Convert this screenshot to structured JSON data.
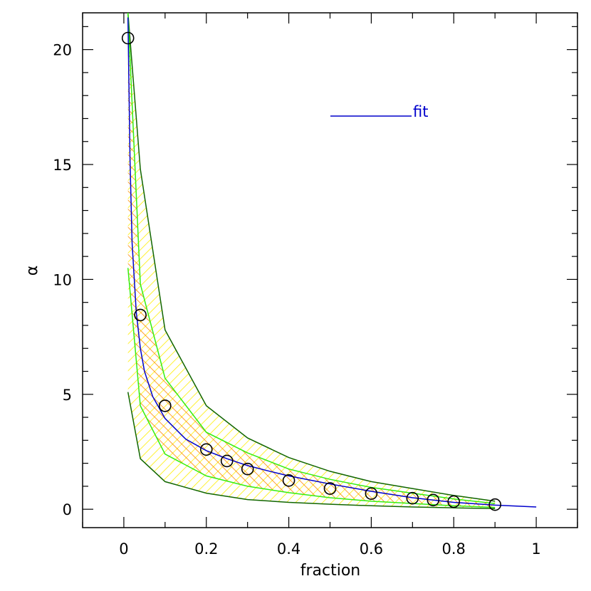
{
  "chart_data": {
    "type": "line",
    "xlabel": "fraction",
    "ylabel": "α",
    "xlim": [
      -0.1,
      1.1
    ],
    "ylim": [
      -0.8,
      21.6
    ],
    "x_ticks": [
      0,
      0.2,
      0.4,
      0.6,
      0.8,
      1
    ],
    "x_tick_labels": [
      "0",
      "0.2",
      "0.4",
      "0.6",
      "0.8",
      "1"
    ],
    "y_ticks": [
      0,
      5,
      10,
      15,
      20
    ],
    "y_tick_labels": [
      "0",
      "5",
      "10",
      "15",
      "20"
    ],
    "grid": false,
    "legend_position": "top-right",
    "colors": {
      "fit": "#0000cc",
      "inner_band": "#ff8800",
      "outer_band": "#ffee00",
      "inner_edge": "#33ee11",
      "outer_edge": "#116600",
      "markers": "#000000"
    },
    "series": [
      {
        "name": "fit",
        "kind": "line",
        "x": [
          0.01,
          0.015,
          0.02,
          0.03,
          0.04,
          0.05,
          0.07,
          0.1,
          0.15,
          0.2,
          0.25,
          0.3,
          0.35,
          0.4,
          0.5,
          0.6,
          0.7,
          0.8,
          0.9,
          1.0
        ],
        "y": [
          21.4,
          15.2,
          11.6,
          8.6,
          7.0,
          6.0,
          4.9,
          3.95,
          3.05,
          2.55,
          2.2,
          1.9,
          1.67,
          1.45,
          1.1,
          0.78,
          0.5,
          0.3,
          0.18,
          0.1
        ]
      },
      {
        "kind": "scatter",
        "x": [
          0.01,
          0.04,
          0.1,
          0.2,
          0.25,
          0.3,
          0.4,
          0.5,
          0.6,
          0.7,
          0.75,
          0.8,
          0.9
        ],
        "y": [
          20.5,
          8.45,
          4.5,
          2.6,
          2.1,
          1.75,
          1.25,
          0.9,
          0.68,
          0.48,
          0.4,
          0.33,
          0.2
        ]
      }
    ],
    "bands": {
      "x": [
        0.01,
        0.04,
        0.1,
        0.2,
        0.3,
        0.4,
        0.5,
        0.6,
        0.7,
        0.8,
        0.9
      ],
      "outer_upper": [
        21.6,
        14.8,
        7.8,
        4.5,
        3.1,
        2.25,
        1.65,
        1.2,
        0.9,
        0.6,
        0.35
      ],
      "inner_upper": [
        21.6,
        9.8,
        5.7,
        3.35,
        2.45,
        1.75,
        1.3,
        0.95,
        0.7,
        0.45,
        0.25
      ],
      "inner_lower": [
        10.5,
        4.5,
        2.4,
        1.45,
        1.0,
        0.72,
        0.5,
        0.35,
        0.25,
        0.15,
        0.08
      ],
      "outer_lower": [
        5.1,
        2.2,
        1.2,
        0.7,
        0.42,
        0.3,
        0.22,
        0.15,
        0.1,
        0.06,
        0.03
      ]
    }
  }
}
